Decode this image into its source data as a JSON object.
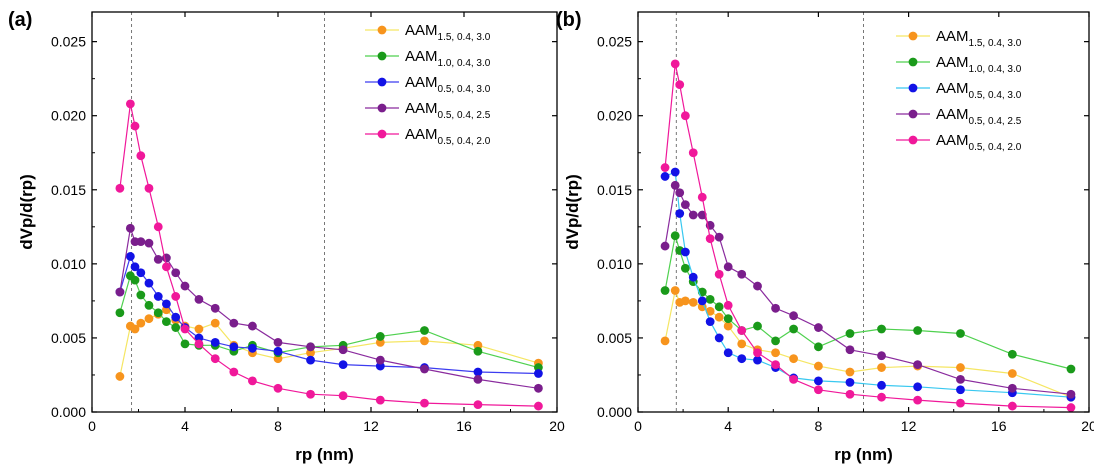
{
  "chart_data": [
    {
      "type": "line",
      "panel_label": "(a)",
      "xlabel": "rp (nm)",
      "ylabel": "dVp/d(rp)",
      "xlim": [
        0,
        20
      ],
      "ylim": [
        0,
        0.027
      ],
      "x_ticks": [
        "0",
        "4",
        "8",
        "12",
        "16",
        "20"
      ],
      "y_ticks": [
        "0.000",
        "0.005",
        "0.010",
        "0.015",
        "0.020",
        "0.025"
      ],
      "reference_lines_x": [
        1.7,
        10
      ],
      "legend_position": "top-right",
      "series": [
        {
          "name": "AAM",
          "subscript": "1.5, 0.4, 3.0",
          "color": "#f7941d",
          "line_color": "#f5e663",
          "points": [
            [
              1.2,
              0.0024
            ],
            [
              1.65,
              0.0058
            ],
            [
              1.85,
              0.0056
            ],
            [
              2.1,
              0.006
            ],
            [
              2.45,
              0.0063
            ],
            [
              2.85,
              0.0066
            ],
            [
              3.2,
              0.0069
            ],
            [
              3.6,
              0.0062
            ],
            [
              4.0,
              0.0058
            ],
            [
              4.6,
              0.0056
            ],
            [
              5.3,
              0.006
            ],
            [
              6.1,
              0.0045
            ],
            [
              6.9,
              0.004
            ],
            [
              8.0,
              0.0036
            ],
            [
              9.4,
              0.004
            ],
            [
              10.8,
              0.0043
            ],
            [
              12.4,
              0.0047
            ],
            [
              14.3,
              0.0048
            ],
            [
              16.6,
              0.0045
            ],
            [
              19.2,
              0.0033
            ]
          ]
        },
        {
          "name": "AAM",
          "subscript": "1.0, 0.4, 3.0",
          "color": "#1a9a1a",
          "line_color": "#4fd14f",
          "points": [
            [
              1.2,
              0.0067
            ],
            [
              1.65,
              0.0092
            ],
            [
              1.85,
              0.0089
            ],
            [
              2.1,
              0.0079
            ],
            [
              2.45,
              0.0072
            ],
            [
              2.85,
              0.0067
            ],
            [
              3.2,
              0.0061
            ],
            [
              3.6,
              0.0057
            ],
            [
              4.0,
              0.0046
            ],
            [
              4.6,
              0.0045
            ],
            [
              5.3,
              0.0045
            ],
            [
              6.1,
              0.0041
            ],
            [
              6.9,
              0.0045
            ],
            [
              8.0,
              0.004
            ],
            [
              9.4,
              0.0044
            ],
            [
              10.8,
              0.0045
            ],
            [
              12.4,
              0.0051
            ],
            [
              14.3,
              0.0055
            ],
            [
              16.6,
              0.0041
            ],
            [
              19.2,
              0.003
            ]
          ]
        },
        {
          "name": "AAM",
          "subscript": "0.5, 0.4, 3.0",
          "color": "#1212e6",
          "line_color": "#3c3cf0",
          "points": [
            [
              1.2,
              0.0081
            ],
            [
              1.65,
              0.0105
            ],
            [
              1.85,
              0.0098
            ],
            [
              2.1,
              0.0094
            ],
            [
              2.45,
              0.0087
            ],
            [
              2.85,
              0.0078
            ],
            [
              3.2,
              0.0073
            ],
            [
              3.6,
              0.0064
            ],
            [
              4.0,
              0.0057
            ],
            [
              4.6,
              0.005
            ],
            [
              5.3,
              0.0047
            ],
            [
              6.1,
              0.0044
            ],
            [
              6.9,
              0.0043
            ],
            [
              8.0,
              0.0041
            ],
            [
              9.4,
              0.0035
            ],
            [
              10.8,
              0.0032
            ],
            [
              12.4,
              0.0031
            ],
            [
              14.3,
              0.003
            ],
            [
              16.6,
              0.0027
            ],
            [
              19.2,
              0.0026
            ]
          ]
        },
        {
          "name": "AAM",
          "subscript": "0.5, 0.4, 2.5",
          "color": "#7a1e8c",
          "line_color": "#8a2b9e",
          "points": [
            [
              1.2,
              0.0081
            ],
            [
              1.65,
              0.0124
            ],
            [
              1.85,
              0.0115
            ],
            [
              2.1,
              0.0115
            ],
            [
              2.45,
              0.0114
            ],
            [
              2.85,
              0.0103
            ],
            [
              3.2,
              0.0104
            ],
            [
              3.6,
              0.0094
            ],
            [
              4.0,
              0.0085
            ],
            [
              4.6,
              0.0076
            ],
            [
              5.3,
              0.007
            ],
            [
              6.1,
              0.006
            ],
            [
              6.9,
              0.0058
            ],
            [
              8.0,
              0.0047
            ],
            [
              9.4,
              0.0044
            ],
            [
              10.8,
              0.0042
            ],
            [
              12.4,
              0.0035
            ],
            [
              14.3,
              0.0029
            ],
            [
              16.6,
              0.0022
            ],
            [
              19.2,
              0.0016
            ]
          ]
        },
        {
          "name": "AAM",
          "subscript": "0.5, 0.4, 2.0",
          "color": "#f0189a",
          "line_color": "#f0189a",
          "points": [
            [
              1.2,
              0.0151
            ],
            [
              1.65,
              0.0208
            ],
            [
              1.85,
              0.0193
            ],
            [
              2.1,
              0.0173
            ],
            [
              2.45,
              0.0151
            ],
            [
              2.85,
              0.0125
            ],
            [
              3.2,
              0.0098
            ],
            [
              3.6,
              0.0078
            ],
            [
              4.0,
              0.0056
            ],
            [
              4.6,
              0.0046
            ],
            [
              5.3,
              0.0036
            ],
            [
              6.1,
              0.0027
            ],
            [
              6.9,
              0.0021
            ],
            [
              8.0,
              0.0016
            ],
            [
              9.4,
              0.0012
            ],
            [
              10.8,
              0.0011
            ],
            [
              12.4,
              0.0008
            ],
            [
              14.3,
              0.0006
            ],
            [
              16.6,
              0.0005
            ],
            [
              19.2,
              0.0004
            ]
          ]
        }
      ]
    },
    {
      "type": "line",
      "panel_label": "(b)",
      "xlabel": "rp (nm)",
      "ylabel": "dVp/d(rp)",
      "xlim": [
        0,
        20
      ],
      "ylim": [
        0,
        0.027
      ],
      "x_ticks": [
        "0",
        "4",
        "8",
        "12",
        "16",
        "20"
      ],
      "y_ticks": [
        "0.000",
        "0.005",
        "0.010",
        "0.015",
        "0.020",
        "0.025"
      ],
      "reference_lines_x": [
        1.7,
        10
      ],
      "legend_position": "top-right",
      "series": [
        {
          "name": "AAM",
          "subscript": "1.5, 0.4, 3.0",
          "color": "#f7941d",
          "line_color": "#f5e663",
          "points": [
            [
              1.2,
              0.0048
            ],
            [
              1.65,
              0.0082
            ],
            [
              1.85,
              0.0074
            ],
            [
              2.1,
              0.0075
            ],
            [
              2.45,
              0.0074
            ],
            [
              2.85,
              0.0071
            ],
            [
              3.2,
              0.0068
            ],
            [
              3.6,
              0.0064
            ],
            [
              4.0,
              0.0058
            ],
            [
              4.6,
              0.0046
            ],
            [
              5.3,
              0.0042
            ],
            [
              6.1,
              0.004
            ],
            [
              6.9,
              0.0036
            ],
            [
              8.0,
              0.0031
            ],
            [
              9.4,
              0.0027
            ],
            [
              10.8,
              0.003
            ],
            [
              12.4,
              0.0031
            ],
            [
              14.3,
              0.003
            ],
            [
              16.6,
              0.0026
            ],
            [
              19.2,
              0.001
            ]
          ]
        },
        {
          "name": "AAM",
          "subscript": "1.0, 0.4, 3.0",
          "color": "#1a9a1a",
          "line_color": "#4fd14f",
          "points": [
            [
              1.2,
              0.0082
            ],
            [
              1.65,
              0.0119
            ],
            [
              1.85,
              0.0109
            ],
            [
              2.1,
              0.0097
            ],
            [
              2.45,
              0.0088
            ],
            [
              2.85,
              0.0081
            ],
            [
              3.2,
              0.0076
            ],
            [
              3.6,
              0.0071
            ],
            [
              4.0,
              0.0063
            ],
            [
              4.6,
              0.0055
            ],
            [
              5.3,
              0.0058
            ],
            [
              6.1,
              0.0048
            ],
            [
              6.9,
              0.0056
            ],
            [
              8.0,
              0.0044
            ],
            [
              9.4,
              0.0053
            ],
            [
              10.8,
              0.0056
            ],
            [
              12.4,
              0.0055
            ],
            [
              14.3,
              0.0053
            ],
            [
              16.6,
              0.0039
            ],
            [
              19.2,
              0.0029
            ]
          ]
        },
        {
          "name": "AAM",
          "subscript": "0.5, 0.4, 3.0",
          "color": "#1212e6",
          "line_color": "#38c8f0",
          "points": [
            [
              1.2,
              0.0159
            ],
            [
              1.65,
              0.0162
            ],
            [
              1.85,
              0.0134
            ],
            [
              2.1,
              0.0108
            ],
            [
              2.45,
              0.0091
            ],
            [
              2.85,
              0.0075
            ],
            [
              3.2,
              0.0061
            ],
            [
              3.6,
              0.005
            ],
            [
              4.0,
              0.004
            ],
            [
              4.6,
              0.0036
            ],
            [
              5.3,
              0.0035
            ],
            [
              6.1,
              0.003
            ],
            [
              6.9,
              0.0023
            ],
            [
              8.0,
              0.0021
            ],
            [
              9.4,
              0.002
            ],
            [
              10.8,
              0.0018
            ],
            [
              12.4,
              0.0017
            ],
            [
              14.3,
              0.0015
            ],
            [
              16.6,
              0.0013
            ],
            [
              19.2,
              0.001
            ]
          ]
        },
        {
          "name": "AAM",
          "subscript": "0.5, 0.4, 2.5",
          "color": "#7a1e8c",
          "line_color": "#8a2b9e",
          "points": [
            [
              1.2,
              0.0112
            ],
            [
              1.65,
              0.0153
            ],
            [
              1.85,
              0.0148
            ],
            [
              2.1,
              0.014
            ],
            [
              2.45,
              0.0133
            ],
            [
              2.85,
              0.0133
            ],
            [
              3.2,
              0.0126
            ],
            [
              3.6,
              0.0118
            ],
            [
              4.0,
              0.0098
            ],
            [
              4.6,
              0.0093
            ],
            [
              5.3,
              0.0085
            ],
            [
              6.1,
              0.007
            ],
            [
              6.9,
              0.0065
            ],
            [
              8.0,
              0.0057
            ],
            [
              9.4,
              0.0042
            ],
            [
              10.8,
              0.0038
            ],
            [
              12.4,
              0.0032
            ],
            [
              14.3,
              0.0022
            ],
            [
              16.6,
              0.0016
            ],
            [
              19.2,
              0.0012
            ]
          ]
        },
        {
          "name": "AAM",
          "subscript": "0.5, 0.4, 2.0",
          "color": "#f0189a",
          "line_color": "#f0189a",
          "points": [
            [
              1.2,
              0.0165
            ],
            [
              1.65,
              0.0235
            ],
            [
              1.85,
              0.0221
            ],
            [
              2.1,
              0.02
            ],
            [
              2.45,
              0.0175
            ],
            [
              2.85,
              0.0145
            ],
            [
              3.2,
              0.0117
            ],
            [
              3.6,
              0.0093
            ],
            [
              4.0,
              0.0072
            ],
            [
              4.6,
              0.0055
            ],
            [
              5.3,
              0.004
            ],
            [
              6.1,
              0.0032
            ],
            [
              6.9,
              0.0022
            ],
            [
              8.0,
              0.0015
            ],
            [
              9.4,
              0.0012
            ],
            [
              10.8,
              0.001
            ],
            [
              12.4,
              0.0008
            ],
            [
              14.3,
              0.0006
            ],
            [
              16.6,
              0.0004
            ],
            [
              19.2,
              0.0003
            ]
          ]
        }
      ]
    }
  ]
}
